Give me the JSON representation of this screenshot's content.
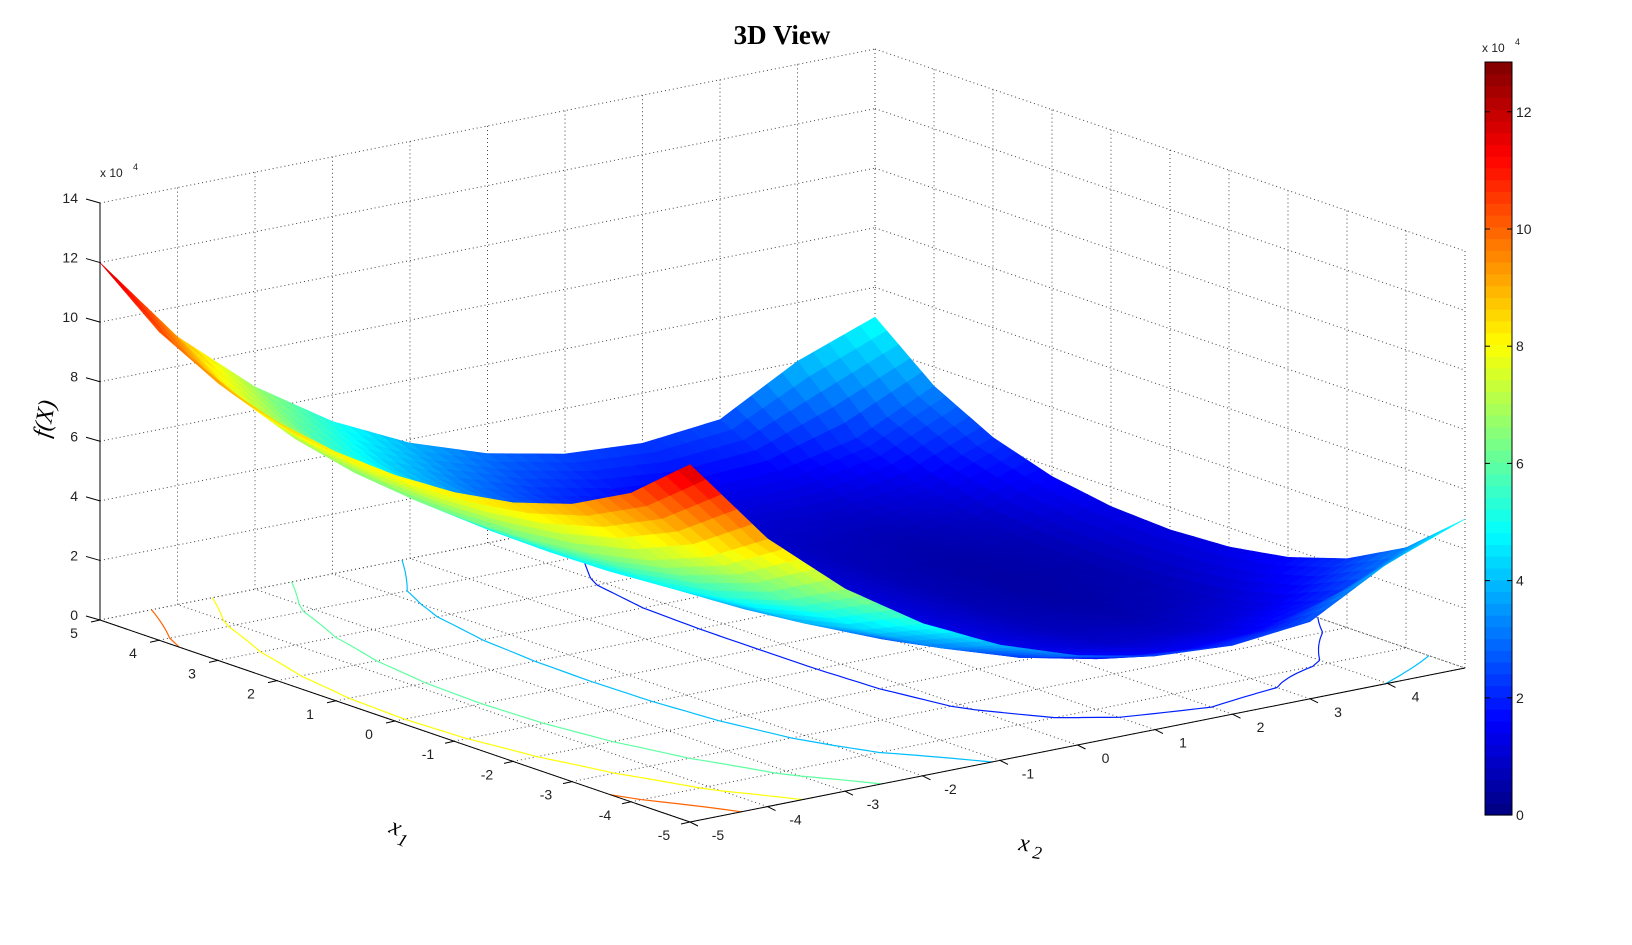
{
  "chart_data": {
    "type": "surface",
    "title": "3D View",
    "xlabel": "x",
    "xlabel_sub": "1",
    "ylabel": "x",
    "ylabel_sub": "2",
    "zlabel": "f(X)",
    "exponent_label": "x 10",
    "exponent_power": "4",
    "colormap": "jet",
    "grid": true,
    "x1": [
      -5,
      -4,
      -3,
      -2,
      -1,
      0,
      1,
      2,
      3,
      4,
      5
    ],
    "x2": [
      -5,
      -4,
      -3,
      -2,
      -1,
      0,
      1,
      2,
      3,
      4,
      5
    ],
    "z_rows_by_x1": [
      [
        120000,
        89900,
        67920,
        51120,
        38720,
        30000,
        24720,
        23120,
        25920,
        40320,
        50000
      ],
      [
        103620,
        77180,
        57300,
        42300,
        30980,
        22620,
        16980,
        14300,
        15300,
        21180,
        33620
      ],
      [
        93120,
        69200,
        51280,
        37680,
        27200,
        19120,
        13200,
        9680,
        9280,
        13200,
        23120
      ],
      [
        86820,
        64700,
        48180,
        35580,
        25700,
        17820,
        11700,
        7580,
        6180,
        8700,
        16820
      ],
      [
        83520,
        62480,
        46800,
        34800,
        25280,
        17520,
        11280,
        6800,
        4800,
        6480,
        13520
      ],
      [
        82500,
        61820,
        46420,
        34620,
        25220,
        17500,
        11220,
        6620,
        4420,
        5820,
        12500
      ],
      [
        83520,
        62480,
        46800,
        34800,
        25280,
        17520,
        11280,
        6800,
        4800,
        6480,
        13520
      ],
      [
        86820,
        64700,
        48180,
        35580,
        25700,
        17820,
        11700,
        7580,
        6180,
        8700,
        16820
      ],
      [
        93120,
        69200,
        51280,
        37680,
        27200,
        19120,
        13200,
        9680,
        9280,
        13200,
        23120
      ],
      [
        103620,
        77180,
        57300,
        42300,
        30980,
        22620,
        16980,
        14300,
        15300,
        21180,
        33620
      ],
      [
        120000,
        89900,
        67920,
        51120,
        38720,
        30000,
        24720,
        23120,
        25920,
        40320,
        50000
      ]
    ],
    "xlim": [
      -5,
      5
    ],
    "ylim": [
      -5,
      5
    ],
    "zlim": [
      0,
      140000
    ],
    "x1_tick_labels": [
      "-5",
      "-4",
      "-3",
      "-2",
      "-1",
      "0",
      "1",
      "2",
      "3",
      "4",
      "5"
    ],
    "x2_tick_labels": [
      "-5",
      "-4",
      "-3",
      "-2",
      "-1",
      "0",
      "1",
      "2",
      "3",
      "4"
    ],
    "z_tick_labels": [
      "0",
      "2",
      "4",
      "6",
      "8",
      "10",
      "12",
      "14"
    ],
    "contour_levels": [
      20000,
      40000,
      60000,
      80000,
      100000,
      120000
    ],
    "colorbar": {
      "clim": [
        0,
        128500
      ],
      "tick_labels": [
        "0",
        "2",
        "4",
        "6",
        "8",
        "10",
        "12"
      ],
      "exponent_label": "x 10",
      "exponent_power": "4"
    }
  }
}
